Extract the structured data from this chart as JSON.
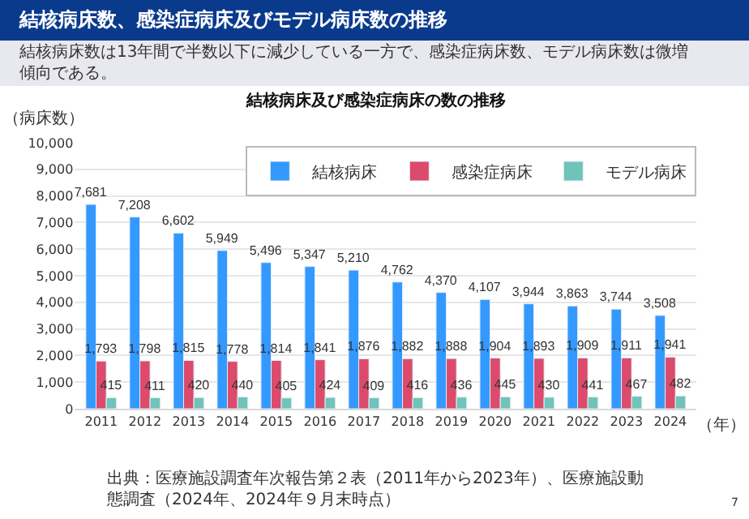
{
  "chart_data": {
    "type": "bar",
    "title": "結核病床数、感染症病床及びモデル病床数の推移",
    "subtitle": "結核病床数は13年間で半数以下に減少している一方で、感染症病床数、モデル病床数は微増傾向である。",
    "xlabel": "（年）",
    "ylabel": "（病床数）",
    "categories": [
      "2011",
      "2012",
      "2013",
      "2014",
      "2015",
      "2016",
      "2017",
      "2018",
      "2019",
      "2020",
      "2021",
      "2022",
      "2023",
      "2024"
    ],
    "series": [
      {
        "name": "結核病床",
        "color": "#3399ff",
        "values": [
          7681,
          7208,
          6602,
          5949,
          5496,
          5347,
          5210,
          4762,
          4370,
          4107,
          3944,
          3863,
          3744,
          3508
        ],
        "value_labels": [
          "7,681",
          "7,208",
          "6,602",
          "5,949",
          "5,496",
          "5,347",
          "5,210",
          "4,762",
          "4,370",
          "4,107",
          "3,944",
          "3,863",
          "3,744",
          "3,508"
        ]
      },
      {
        "name": "感染症病床",
        "color": "#dc4b6b",
        "values": [
          1793,
          1798,
          1815,
          1778,
          1814,
          1841,
          1876,
          1882,
          1888,
          1904,
          1893,
          1909,
          1911,
          1941
        ],
        "value_labels": [
          "1,793",
          "1,798",
          "1,815",
          "1,778",
          "1,814",
          "1,841",
          "1,876",
          "1,882",
          "1,888",
          "1,904",
          "1,893",
          "1,909",
          "1,911",
          "1,941"
        ]
      },
      {
        "name": "モデル病床",
        "color": "#6ec4b8",
        "values": [
          415,
          411,
          420,
          440,
          405,
          424,
          409,
          416,
          436,
          445,
          430,
          441,
          467,
          482
        ],
        "value_labels": [
          "415",
          "411",
          "420",
          "440",
          "405",
          "424",
          "409",
          "416",
          "436",
          "445",
          "430",
          "441",
          "467",
          "482"
        ]
      }
    ],
    "ylim": [
      0,
      10000
    ],
    "yticks": [
      {
        "value": 0,
        "label": "0"
      },
      {
        "value": 1000,
        "label": "1,000"
      },
      {
        "value": 2000,
        "label": "2,000"
      },
      {
        "value": 3000,
        "label": "3,000"
      },
      {
        "value": 4000,
        "label": "4,000"
      },
      {
        "value": 5000,
        "label": "5,000"
      },
      {
        "value": 6000,
        "label": "6,000"
      },
      {
        "value": 7000,
        "label": "7,000"
      },
      {
        "value": 8000,
        "label": "8,000"
      },
      {
        "value": 9000,
        "label": "9,000"
      },
      {
        "value": 10000,
        "label": "10,000"
      }
    ],
    "grid": "y",
    "legend": "top right",
    "annotations": [
      "結核病床及び感染症病床の数の推移",
      "出典：医療施設調査年次報告第２表（2011年から2023年）、医療施設動態調査（2024年、2024年９月末時点）",
      "7"
    ]
  }
}
